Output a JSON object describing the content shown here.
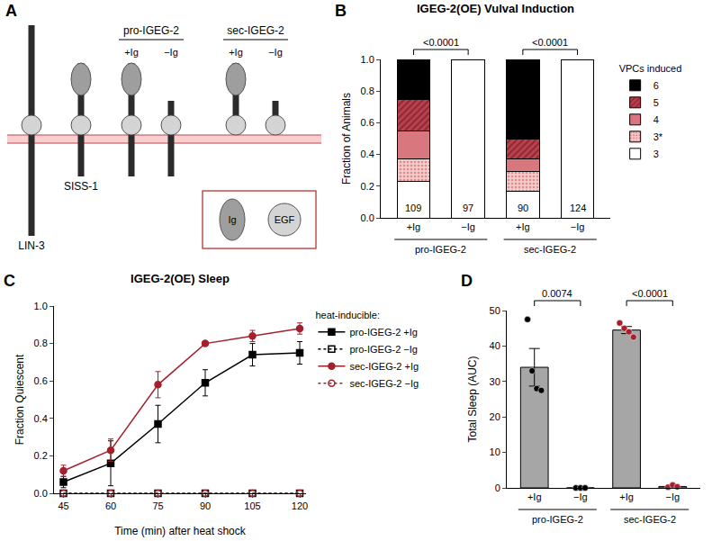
{
  "diagram": {
    "panel_label": "A",
    "items": [
      {
        "label": "LIN-3",
        "ig": false,
        "membrane": true
      },
      {
        "label": "SISS-1",
        "ig": true,
        "membrane": true
      },
      {
        "group": "pro-IGEG-2",
        "membrane": true,
        "members": [
          {
            "label": "+Ig",
            "ig": true
          },
          {
            "label": "−Ig",
            "ig": false
          }
        ]
      },
      {
        "group": "sec-IGEG-2",
        "membrane": false,
        "members": [
          {
            "label": "+Ig",
            "ig": true
          },
          {
            "label": "−Ig",
            "ig": false
          }
        ]
      }
    ],
    "key": [
      {
        "label": "Ig",
        "shape": "oval"
      },
      {
        "label": "EGF",
        "shape": "circle"
      }
    ]
  },
  "chart_data": [
    {
      "panel_label": "B",
      "type": "bar",
      "stacked": true,
      "grid": false,
      "title": "IGEG-2(OE) Vulval Induction",
      "y_label": "Fraction of Animals",
      "categories": [
        "+Ig",
        "−Ig",
        "+Ig",
        "−Ig"
      ],
      "groups": [
        {
          "label": "pro-IGEG-2",
          "from": 0,
          "to": 1
        },
        {
          "label": "sec-IGEG-2",
          "from": 2,
          "to": 3
        }
      ],
      "counts": [
        109,
        97,
        90,
        124
      ],
      "comparisons": [
        {
          "from": 0,
          "to": 1,
          "label": "<0.0001"
        },
        {
          "from": 2,
          "to": 3,
          "label": "<0.0001"
        }
      ],
      "legend_title": "VPCs induced",
      "legend": "right",
      "ylim": [
        0,
        1
      ],
      "yticks": [
        {
          "value": 0,
          "label": "0.0"
        },
        0.2,
        0.4,
        0.6,
        0.8,
        {
          "value": 1,
          "label": "1.0"
        }
      ],
      "series": [
        {
          "name": "3",
          "color": "#ffffff",
          "values": [
            0.23,
            1.0,
            0.17,
            1.0
          ]
        },
        {
          "name": "3*",
          "color": "#f4cccc",
          "marker": "dots",
          "values": [
            0.14,
            0,
            0.12,
            0
          ]
        },
        {
          "name": "4",
          "color": "#d9777f",
          "values": [
            0.18,
            0,
            0.08,
            0
          ]
        },
        {
          "name": "5",
          "color": "#b8414d",
          "marker": "hatch",
          "values": [
            0.2,
            0,
            0.13,
            0
          ]
        },
        {
          "name": "6",
          "color": "#000000",
          "values": [
            0.25,
            0,
            0.5,
            0
          ]
        }
      ]
    },
    {
      "panel_label": "C",
      "type": "line",
      "grid": false,
      "title": "IGEG-2(OE) Sleep",
      "x_label": "Time (min) after heat shock",
      "y_label": "Fraction Quiescent",
      "x": [
        45,
        60,
        75,
        90,
        105,
        120
      ],
      "xlim": [
        42,
        122
      ],
      "xticks": [
        45,
        60,
        75,
        90,
        105,
        120
      ],
      "ylim": [
        0,
        1
      ],
      "yticks": [
        {
          "value": 0,
          "label": "0.0"
        },
        0.2,
        0.4,
        0.6,
        0.8,
        {
          "value": 1,
          "label": "1.0"
        }
      ],
      "legend_title": "heat-inducible:",
      "legend": "right",
      "series": [
        {
          "name": "pro-IGEG-2 +Ig",
          "color": "#000000",
          "marker": "square",
          "line_style": "solid",
          "values": [
            0.06,
            0.16,
            0.37,
            0.59,
            0.74,
            0.75
          ],
          "errors": [
            0.03,
            0.12,
            0.1,
            0.07,
            0.06,
            0.06
          ]
        },
        {
          "name": "pro-IGEG-2 −Ig",
          "color": "#000000",
          "marker": "square-open",
          "line_style": "dot",
          "values": [
            0,
            0,
            0,
            0,
            0,
            0
          ]
        },
        {
          "name": "sec-IGEG-2 +Ig",
          "color": "#a3202c",
          "marker": "circle",
          "line_style": "solid",
          "values": [
            0.12,
            0.23,
            0.58,
            0.8,
            0.84,
            0.88
          ],
          "errors": [
            0.03,
            0.06,
            0.07,
            0.01,
            0.03,
            0.03
          ]
        },
        {
          "name": "sec-IGEG-2 −Ig",
          "color": "#a3202c",
          "marker": "circle-open",
          "line_style": "dot",
          "values": [
            0,
            0,
            0,
            0,
            0,
            0
          ]
        }
      ]
    },
    {
      "panel_label": "D",
      "type": "bar",
      "grid": false,
      "y_label": "Total Sleep (AUC)",
      "categories": [
        "+Ig",
        "−Ig",
        "+Ig",
        "−Ig"
      ],
      "groups": [
        {
          "label": "pro-IGEG-2",
          "from": 0,
          "to": 1
        },
        {
          "label": "sec-IGEG-2",
          "from": 2,
          "to": 3
        }
      ],
      "values": [
        34,
        0,
        44.5,
        0.4
      ],
      "errors": [
        5.3,
        0,
        1.0,
        0.2
      ],
      "color": "#a6a6a6",
      "points": [
        [
          47.5,
          33,
          28,
          27.5
        ],
        [
          0,
          0,
          0
        ],
        [
          46.5,
          45,
          44,
          42.5
        ],
        [
          0.2,
          0.8,
          0.3
        ]
      ],
      "point_colors": [
        "#000000",
        "#000000",
        "#a3202c",
        "#a3202c"
      ],
      "comparisons": [
        {
          "from": 0,
          "to": 1,
          "label": "0.0074"
        },
        {
          "from": 2,
          "to": 3,
          "label": "<0.0001"
        }
      ],
      "ylim": [
        0,
        50
      ],
      "yticks": [
        0,
        10,
        20,
        30,
        40,
        50
      ]
    }
  ]
}
